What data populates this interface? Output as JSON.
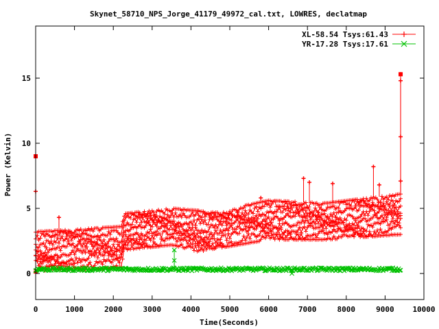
{
  "chart_data": {
    "type": "scatter",
    "title": "Skynet_58710_NPS_Jorge_41179_49972_cal.txt, LOWRES, declatmap",
    "xlabel": "Time(Seconds)",
    "ylabel": "Power (Kelvin)",
    "xlim": [
      0,
      10000
    ],
    "ylim": [
      -2,
      19
    ],
    "x_ticks": [
      0,
      1000,
      2000,
      3000,
      4000,
      5000,
      6000,
      7000,
      8000,
      9000,
      10000
    ],
    "y_ticks": [
      0,
      5,
      10,
      15
    ],
    "grid": false,
    "legend_position": "top-right",
    "series": [
      {
        "name": "XL-58.54 Tsys:61.43",
        "color": "#ff0000",
        "marker": "plus",
        "x_range": [
          0,
          9400
        ],
        "band": [
          {
            "x": 0,
            "low": 0.2,
            "high": 3.2
          },
          {
            "x": 2200,
            "low": 0.4,
            "high": 3.6
          },
          {
            "x": 2300,
            "low": 1.8,
            "high": 4.6
          },
          {
            "x": 3500,
            "low": 2.2,
            "high": 5.0
          },
          {
            "x": 4300,
            "low": 1.6,
            "high": 4.8
          },
          {
            "x": 4400,
            "low": 1.8,
            "high": 4.6
          },
          {
            "x": 6000,
            "low": 2.6,
            "high": 5.6
          },
          {
            "x": 7500,
            "low": 2.6,
            "high": 5.4
          },
          {
            "x": 9400,
            "low": 3.0,
            "high": 6.1
          }
        ],
        "outliers": [
          {
            "x": 0,
            "y": 9.0
          },
          {
            "x": 0,
            "y": 6.3
          },
          {
            "x": 600,
            "y": 4.3
          },
          {
            "x": 5800,
            "y": 5.8
          },
          {
            "x": 6900,
            "y": 7.3
          },
          {
            "x": 7050,
            "y": 7.0
          },
          {
            "x": 7650,
            "y": 6.9
          },
          {
            "x": 8700,
            "y": 8.2
          },
          {
            "x": 8850,
            "y": 6.8
          },
          {
            "x": 9400,
            "y": 15.3
          },
          {
            "x": 9400,
            "y": 14.8
          },
          {
            "x": 9400,
            "y": 10.5
          },
          {
            "x": 9400,
            "y": 7.1
          }
        ]
      },
      {
        "name": "YR-17.28 Tsys:17.61",
        "color": "#00c000",
        "marker": "x",
        "x_range": [
          0,
          9400
        ],
        "level": 0.32,
        "spread": 0.12,
        "outliers": [
          {
            "x": 3570,
            "y": 1.8
          },
          {
            "x": 3570,
            "y": 1.0
          },
          {
            "x": 6600,
            "y": 0.0
          }
        ]
      }
    ]
  }
}
